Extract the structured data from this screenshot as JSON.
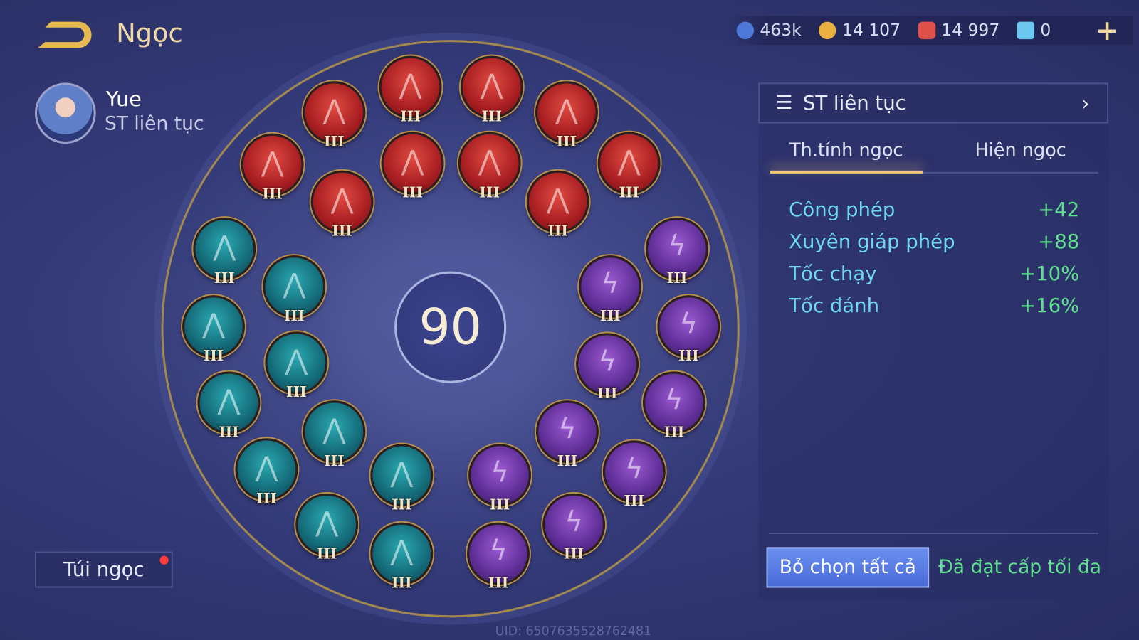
{
  "header": {
    "title": "Ngọc",
    "back_icon": "back-arrow-icon"
  },
  "currencies": [
    {
      "icon": "blue-coin-icon",
      "value": "463k",
      "color": "#4d78d8"
    },
    {
      "icon": "gold-coin-icon",
      "value": "14 107",
      "color": "#e8b040"
    },
    {
      "icon": "red-gem-icon",
      "value": "14 997",
      "color": "#e0504a"
    },
    {
      "icon": "ticket-icon",
      "value": "0",
      "color": "#6cc8f0"
    }
  ],
  "hero": {
    "name": "Yue",
    "preset": "ST liên tục"
  },
  "wheel": {
    "level": "90"
  },
  "gems": {
    "red": [
      "III",
      "III",
      "III",
      "III",
      "III",
      "III",
      "III",
      "III",
      "III",
      "III"
    ],
    "teal": [
      "III",
      "III",
      "III",
      "III",
      "III",
      "III",
      "III",
      "III",
      "III",
      "III"
    ],
    "purple": [
      "III",
      "III",
      "III",
      "III",
      "III",
      "III",
      "III",
      "III",
      "III",
      "III"
    ]
  },
  "panel": {
    "preset_name": "ST liên tục",
    "tabs": [
      {
        "label": "Th.tính ngọc",
        "active": true
      },
      {
        "label": "Hiện ngọc",
        "active": false
      }
    ],
    "stats": [
      {
        "name": "Công phép",
        "value": "+42"
      },
      {
        "name": "Xuyên giáp phép",
        "value": "+88"
      },
      {
        "name": "Tốc chạy",
        "value": "+10%"
      },
      {
        "name": "Tốc đánh",
        "value": "+16%"
      }
    ],
    "deselect_all": "Bỏ chọn tất cả",
    "max_level": "Đã đạt cấp tối đa"
  },
  "bag": {
    "label": "Túi ngọc",
    "has_notification": true
  },
  "uid": "UID: 6507635528762481"
}
